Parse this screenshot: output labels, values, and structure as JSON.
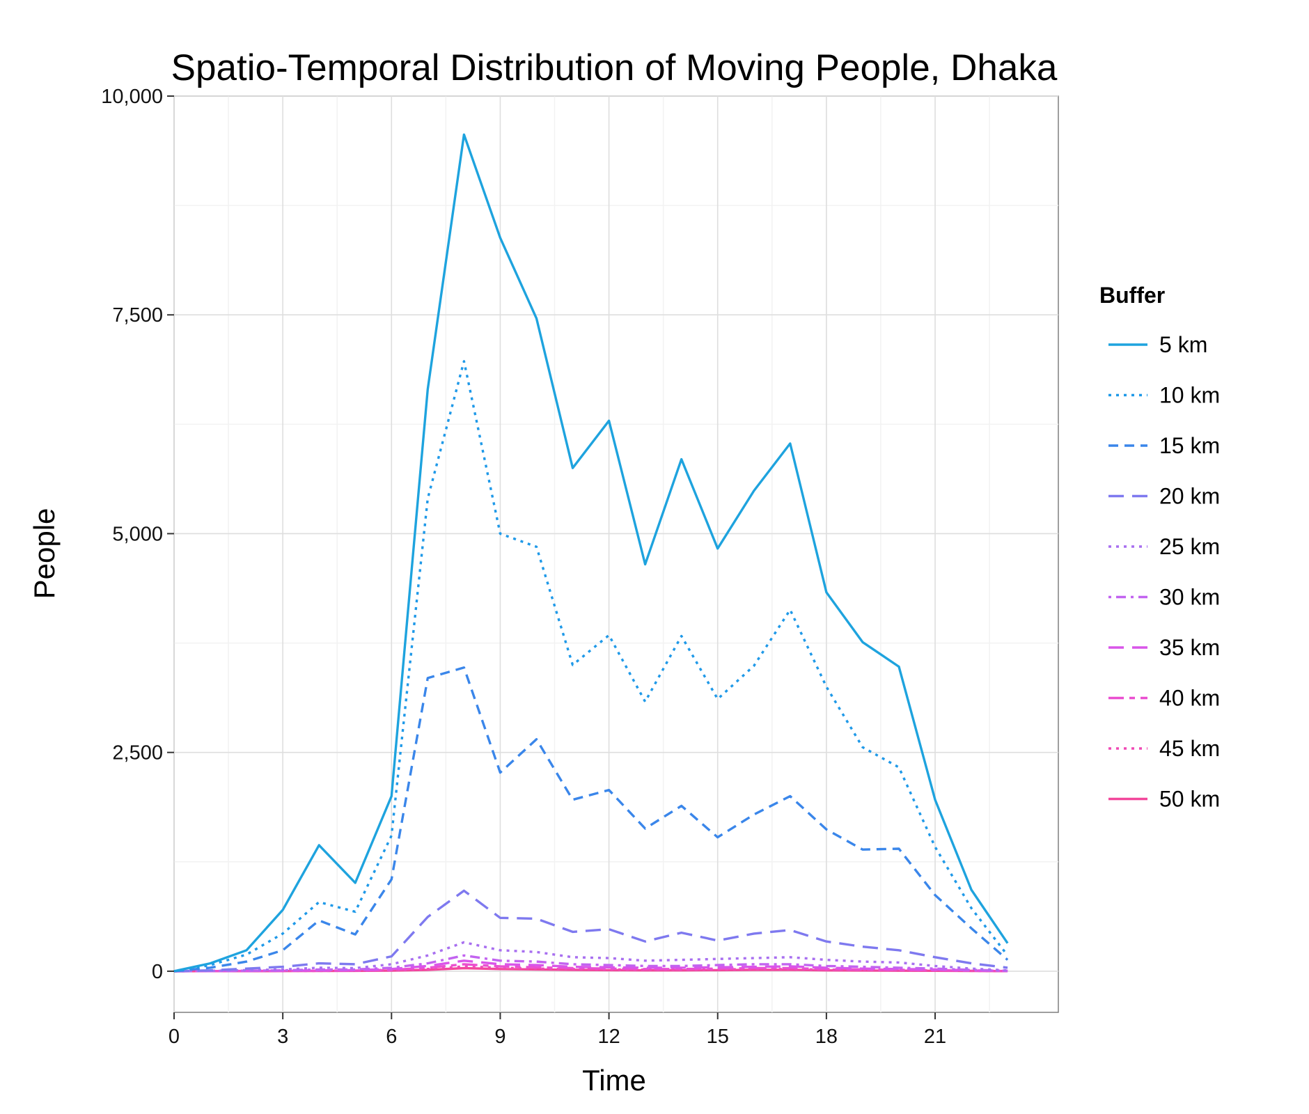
{
  "chart_data": {
    "type": "line",
    "title": "Spatio-Temporal Distribution of Moving People, Dhaka",
    "xlabel": "Time",
    "ylabel": "People",
    "xlim": [
      0,
      24.4
    ],
    "ylim": [
      -470,
      10000
    ],
    "x_ticks": [
      0,
      3,
      6,
      9,
      12,
      15,
      18,
      21
    ],
    "x_tick_labels": [
      "0",
      "3",
      "6",
      "9",
      "12",
      "15",
      "18",
      "21"
    ],
    "y_ticks": [
      0,
      2500,
      5000,
      7500,
      10000
    ],
    "y_tick_labels": [
      "0",
      "2,500",
      "5,000",
      "7,500",
      "10,000"
    ],
    "grid": true,
    "legend": {
      "title": "Buffer",
      "position": "right"
    },
    "x": [
      0,
      1,
      2,
      3,
      4,
      5,
      6,
      7,
      8,
      9,
      10,
      11,
      12,
      13,
      14,
      15,
      16,
      17,
      18,
      19,
      20,
      21,
      22,
      23
    ],
    "series": [
      {
        "name": "5 km",
        "color": "#1ea3de",
        "dash": "solid",
        "values": [
          0,
          90,
          240,
          700,
          1440,
          1010,
          2000,
          6650,
          9560,
          8380,
          7460,
          5750,
          6290,
          4650,
          5850,
          4830,
          5490,
          6030,
          4330,
          3760,
          3480,
          1960,
          930,
          320
        ]
      },
      {
        "name": "10 km",
        "color": "#1f99e8",
        "dash": "dotted",
        "values": [
          0,
          70,
          190,
          430,
          790,
          680,
          1550,
          5400,
          6970,
          5000,
          4850,
          3500,
          3840,
          3080,
          3830,
          3110,
          3490,
          4130,
          3250,
          2560,
          2330,
          1420,
          720,
          180
        ]
      },
      {
        "name": "15 km",
        "color": "#3a86ea",
        "dash": "dashed",
        "values": [
          0,
          40,
          110,
          240,
          580,
          420,
          1050,
          3350,
          3470,
          2270,
          2650,
          1960,
          2070,
          1630,
          1890,
          1530,
          1790,
          2000,
          1620,
          1390,
          1400,
          870,
          490,
          130
        ]
      },
      {
        "name": "20 km",
        "color": "#7e79ef",
        "dash": "longdash",
        "values": [
          0,
          10,
          30,
          50,
          90,
          80,
          170,
          620,
          920,
          610,
          600,
          450,
          480,
          340,
          440,
          350,
          430,
          470,
          340,
          280,
          240,
          160,
          90,
          40
        ]
      },
      {
        "name": "25 km",
        "color": "#a86ff0",
        "dash": "dotted",
        "values": [
          0,
          5,
          12,
          20,
          40,
          35,
          80,
          180,
          330,
          240,
          220,
          160,
          150,
          120,
          130,
          140,
          150,
          160,
          130,
          110,
          100,
          60,
          30,
          10
        ]
      },
      {
        "name": "30 km",
        "color": "#c263f0",
        "dash": "dotdash",
        "values": [
          0,
          3,
          6,
          10,
          20,
          20,
          40,
          90,
          180,
          120,
          110,
          80,
          70,
          60,
          60,
          70,
          80,
          80,
          60,
          50,
          40,
          30,
          15,
          5
        ]
      },
      {
        "name": "35 km",
        "color": "#d955e9",
        "dash": "longdash",
        "values": [
          0,
          2,
          4,
          6,
          10,
          12,
          25,
          60,
          120,
          80,
          70,
          50,
          45,
          40,
          40,
          45,
          50,
          55,
          40,
          30,
          25,
          20,
          10,
          3
        ]
      },
      {
        "name": "40 km",
        "color": "#ea4fd0",
        "dash": "twodash",
        "values": [
          0,
          1,
          3,
          4,
          6,
          8,
          15,
          40,
          80,
          55,
          45,
          35,
          30,
          25,
          25,
          30,
          35,
          35,
          25,
          20,
          15,
          12,
          6,
          2
        ]
      },
      {
        "name": "45 km",
        "color": "#f04ab5",
        "dash": "dotted",
        "values": [
          0,
          1,
          2,
          3,
          4,
          5,
          10,
          25,
          55,
          40,
          30,
          25,
          20,
          18,
          18,
          20,
          25,
          25,
          18,
          15,
          10,
          8,
          4,
          1
        ]
      },
      {
        "name": "50 km",
        "color": "#f2479b",
        "dash": "solid",
        "values": [
          0,
          1,
          1,
          2,
          3,
          4,
          7,
          15,
          35,
          25,
          20,
          15,
          12,
          10,
          10,
          12,
          15,
          15,
          10,
          8,
          6,
          5,
          3,
          1
        ]
      }
    ]
  }
}
